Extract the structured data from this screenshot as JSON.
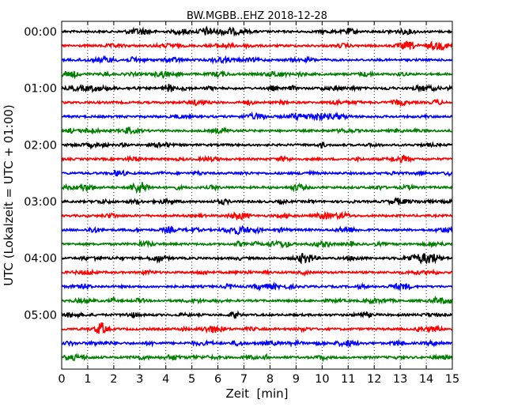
{
  "chart_data": {
    "type": "line",
    "title": "BW.MGBB..EHZ 2018-12-28",
    "xlabel": "Zeit  [min]",
    "ylabel": "UTC (Lokalzeit = UTC + 01:00)",
    "xlim": [
      0,
      15
    ],
    "x_ticks": [
      "0",
      "1",
      "2",
      "3",
      "4",
      "5",
      "6",
      "7",
      "8",
      "9",
      "10",
      "11",
      "12",
      "13",
      "14",
      "15"
    ],
    "y_ticks": [
      "00:00",
      "01:00",
      "02:00",
      "03:00",
      "04:00",
      "05:00"
    ],
    "grid": "vertical-dotted",
    "trace_colors": [
      "#000000",
      "#ff0000",
      "#0000ff",
      "#008000"
    ],
    "trace_count": 24,
    "trace_minutes_per_row": 15
  }
}
